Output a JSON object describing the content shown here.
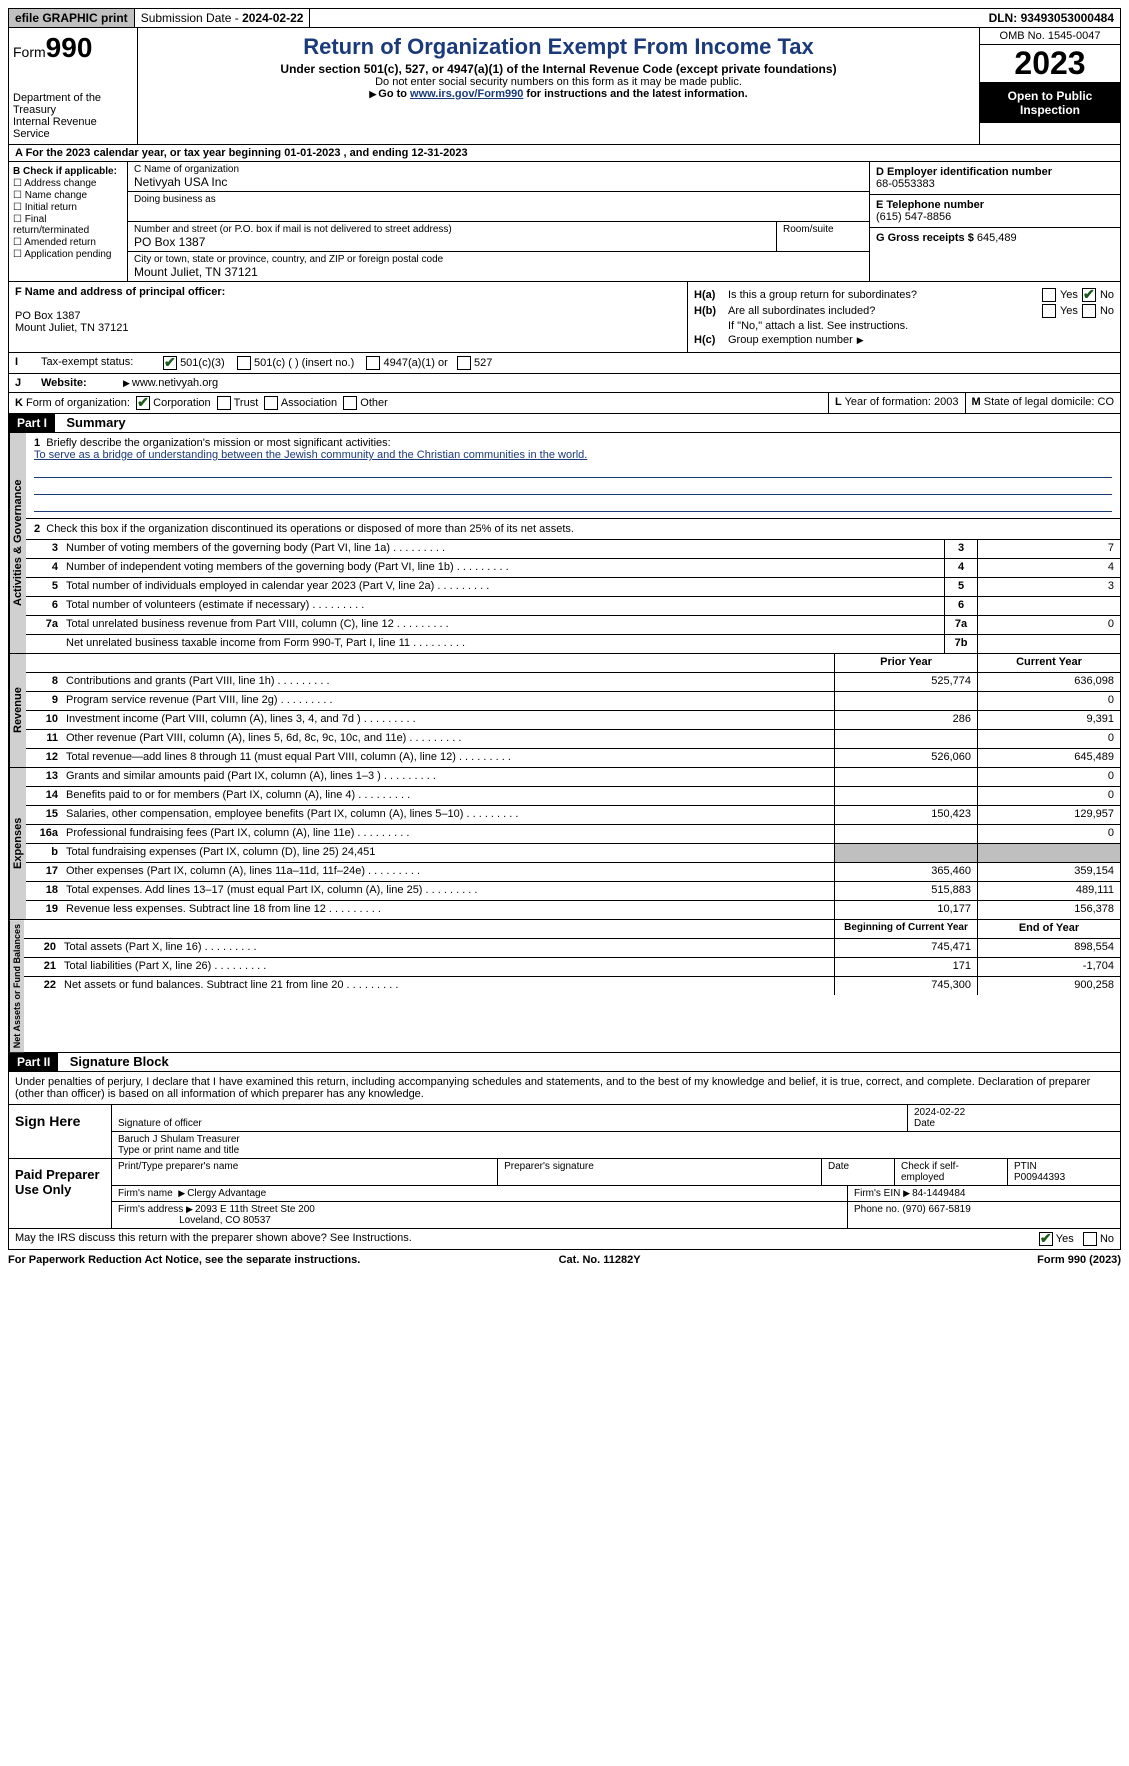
{
  "topbar": {
    "efile": "efile GRAPHIC print",
    "submission_label": "Submission Date - ",
    "submission_date": "2024-02-22",
    "dln_label": "DLN: ",
    "dln": "93493053000484"
  },
  "header": {
    "form_word": "Form",
    "form_num": "990",
    "dept1": "Department of the Treasury",
    "dept2": "Internal Revenue Service",
    "title": "Return of Organization Exempt From Income Tax",
    "sub": "Under section 501(c), 527, or 4947(a)(1) of the Internal Revenue Code (except private foundations)",
    "warn": "Do not enter social security numbers on this form as it may be made public.",
    "goto_pre": "Go to ",
    "goto_link": "www.irs.gov/Form990",
    "goto_post": " for instructions and the latest information.",
    "omb": "OMB No. 1545-0047",
    "year": "2023",
    "inspection": "Open to Public Inspection"
  },
  "lineA": "A  For the 2023 calendar year, or tax year beginning 01-01-2023    , and ending 12-31-2023",
  "colB": {
    "hdr": "B Check if applicable:",
    "opts": [
      "Address change",
      "Name change",
      "Initial return",
      "Final return/terminated",
      "Amended return",
      "Application pending"
    ]
  },
  "colC": {
    "name_lbl": "C Name of organization",
    "name": "Netivyah USA Inc",
    "dba_lbl": "Doing business as",
    "addr_lbl": "Number and street (or P.O. box if mail is not delivered to street address)",
    "room_lbl": "Room/suite",
    "addr": "PO Box 1387",
    "city_lbl": "City or town, state or province, country, and ZIP or foreign postal code",
    "city": "Mount Juliet, TN  37121"
  },
  "colDE": {
    "d_lbl": "D Employer identification number",
    "d_val": "68-0553383",
    "e_lbl": "E Telephone number",
    "e_val": "(615) 547-8856",
    "g_lbl": "G Gross receipts $ ",
    "g_val": "645,489"
  },
  "rowF": {
    "f_lbl": "F  Name and address of principal officer:",
    "f_addr1": "PO Box 1387",
    "f_addr2": "Mount Juliet, TN  37121",
    "ha_lbl": "Is this a group return for subordinates?",
    "hb_lbl": "Are all subordinates included?",
    "h_note": "If \"No,\" attach a list. See instructions.",
    "hc_lbl": "Group exemption number",
    "ha_tag": "H(a)",
    "hb_tag": "H(b)",
    "hc_tag": "H(c)",
    "yes": "Yes",
    "no": "No"
  },
  "rowI": {
    "i_lbl": "I",
    "i_txt": "Tax-exempt status:",
    "o1": "501(c)(3)",
    "o2": "501(c) (  ) (insert no.)",
    "o3": "4947(a)(1) or",
    "o4": "527"
  },
  "rowJ": {
    "j_lbl": "J",
    "j_txt": "Website:",
    "j_val": "www.netivyah.org"
  },
  "rowK": {
    "k_lbl": "K",
    "k_txt": "Form of organization:",
    "o1": "Corporation",
    "o2": "Trust",
    "o3": "Association",
    "o4": "Other",
    "l_lbl": "L",
    "l_txt": "Year of formation: ",
    "l_val": "2003",
    "m_lbl": "M",
    "m_txt": "State of legal domicile: ",
    "m_val": "CO"
  },
  "part1": {
    "tag": "Part I",
    "title": "Summary",
    "l1_lbl": "Briefly describe the organization's mission or most significant activities:",
    "l1_txt": "To serve as a bridge of understanding between the Jewish community and the Christian communities in the world.",
    "l2": "Check this box      if the organization discontinued its operations or disposed of more than 25% of its net assets.",
    "tab_gov": "Activities & Governance",
    "tab_rev": "Revenue",
    "tab_exp": "Expenses",
    "tab_net": "Net Assets or Fund Balances",
    "prior": "Prior Year",
    "current": "Current Year",
    "boy": "Beginning of Current Year",
    "eoy": "End of Year",
    "rows_gov": [
      {
        "n": "3",
        "t": "Number of voting members of the governing body (Part VI, line 1a)",
        "b": "3",
        "v": "7"
      },
      {
        "n": "4",
        "t": "Number of independent voting members of the governing body (Part VI, line 1b)",
        "b": "4",
        "v": "4"
      },
      {
        "n": "5",
        "t": "Total number of individuals employed in calendar year 2023 (Part V, line 2a)",
        "b": "5",
        "v": "3"
      },
      {
        "n": "6",
        "t": "Total number of volunteers (estimate if necessary)",
        "b": "6",
        "v": ""
      },
      {
        "n": "7a",
        "t": "Total unrelated business revenue from Part VIII, column (C), line 12",
        "b": "7a",
        "v": "0"
      },
      {
        "n": "",
        "t": "Net unrelated business taxable income from Form 990-T, Part I, line 11",
        "b": "7b",
        "v": ""
      }
    ],
    "rows_rev": [
      {
        "n": "8",
        "t": "Contributions and grants (Part VIII, line 1h)",
        "p": "525,774",
        "c": "636,098"
      },
      {
        "n": "9",
        "t": "Program service revenue (Part VIII, line 2g)",
        "p": "",
        "c": "0"
      },
      {
        "n": "10",
        "t": "Investment income (Part VIII, column (A), lines 3, 4, and 7d )",
        "p": "286",
        "c": "9,391"
      },
      {
        "n": "11",
        "t": "Other revenue (Part VIII, column (A), lines 5, 6d, 8c, 9c, 10c, and 11e)",
        "p": "",
        "c": "0"
      },
      {
        "n": "12",
        "t": "Total revenue—add lines 8 through 11 (must equal Part VIII, column (A), line 12)",
        "p": "526,060",
        "c": "645,489"
      }
    ],
    "rows_exp": [
      {
        "n": "13",
        "t": "Grants and similar amounts paid (Part IX, column (A), lines 1–3 )",
        "p": "",
        "c": "0"
      },
      {
        "n": "14",
        "t": "Benefits paid to or for members (Part IX, column (A), line 4)",
        "p": "",
        "c": "0"
      },
      {
        "n": "15",
        "t": "Salaries, other compensation, employee benefits (Part IX, column (A), lines 5–10)",
        "p": "150,423",
        "c": "129,957"
      },
      {
        "n": "16a",
        "t": "Professional fundraising fees (Part IX, column (A), line 11e)",
        "p": "",
        "c": "0"
      },
      {
        "n": "b",
        "t": "Total fundraising expenses (Part IX, column (D), line 25) 24,451",
        "grey": true
      },
      {
        "n": "17",
        "t": "Other expenses (Part IX, column (A), lines 11a–11d, 11f–24e)",
        "p": "365,460",
        "c": "359,154"
      },
      {
        "n": "18",
        "t": "Total expenses. Add lines 13–17 (must equal Part IX, column (A), line 25)",
        "p": "515,883",
        "c": "489,111"
      },
      {
        "n": "19",
        "t": "Revenue less expenses. Subtract line 18 from line 12",
        "p": "10,177",
        "c": "156,378"
      }
    ],
    "rows_net": [
      {
        "n": "20",
        "t": "Total assets (Part X, line 16)",
        "p": "745,471",
        "c": "898,554"
      },
      {
        "n": "21",
        "t": "Total liabilities (Part X, line 26)",
        "p": "171",
        "c": "-1,704"
      },
      {
        "n": "22",
        "t": "Net assets or fund balances. Subtract line 21 from line 20",
        "p": "745,300",
        "c": "900,258"
      }
    ]
  },
  "part2": {
    "tag": "Part II",
    "title": "Signature Block",
    "decl": "Under penalties of perjury, I declare that I have examined this return, including accompanying schedules and statements, and to the best of my knowledge and belief, it is true, correct, and complete. Declaration of preparer (other than officer) is based on all information of which preparer has any knowledge.",
    "sign_here": "Sign Here",
    "sig_of": "Signature of officer",
    "sig_date_lbl": "Date",
    "sig_date": "2024-02-22",
    "officer": "Baruch J Shulam Treasurer",
    "type_name": "Type or print name and title",
    "paid": "Paid Preparer Use Only",
    "pp_name_lbl": "Print/Type preparer's name",
    "pp_sig_lbl": "Preparer's signature",
    "pp_date_lbl": "Date",
    "pp_self": "Check      if self-employed",
    "ptin_lbl": "PTIN",
    "ptin": "P00944393",
    "firm_name_lbl": "Firm's name",
    "firm_name": "Clergy Advantage",
    "firm_ein_lbl": "Firm's EIN",
    "firm_ein": "84-1449484",
    "firm_addr_lbl": "Firm's address",
    "firm_addr1": "2093 E 11th Street Ste 200",
    "firm_addr2": "Loveland, CO  80537",
    "phone_lbl": "Phone no.",
    "phone": "(970) 667-5819",
    "discuss": "May the IRS discuss this return with the preparer shown above? See Instructions.",
    "yes": "Yes",
    "no": "No"
  },
  "footer": {
    "l": "For Paperwork Reduction Act Notice, see the separate instructions.",
    "c": "Cat. No. 11282Y",
    "r": "Form 990 (2023)"
  }
}
